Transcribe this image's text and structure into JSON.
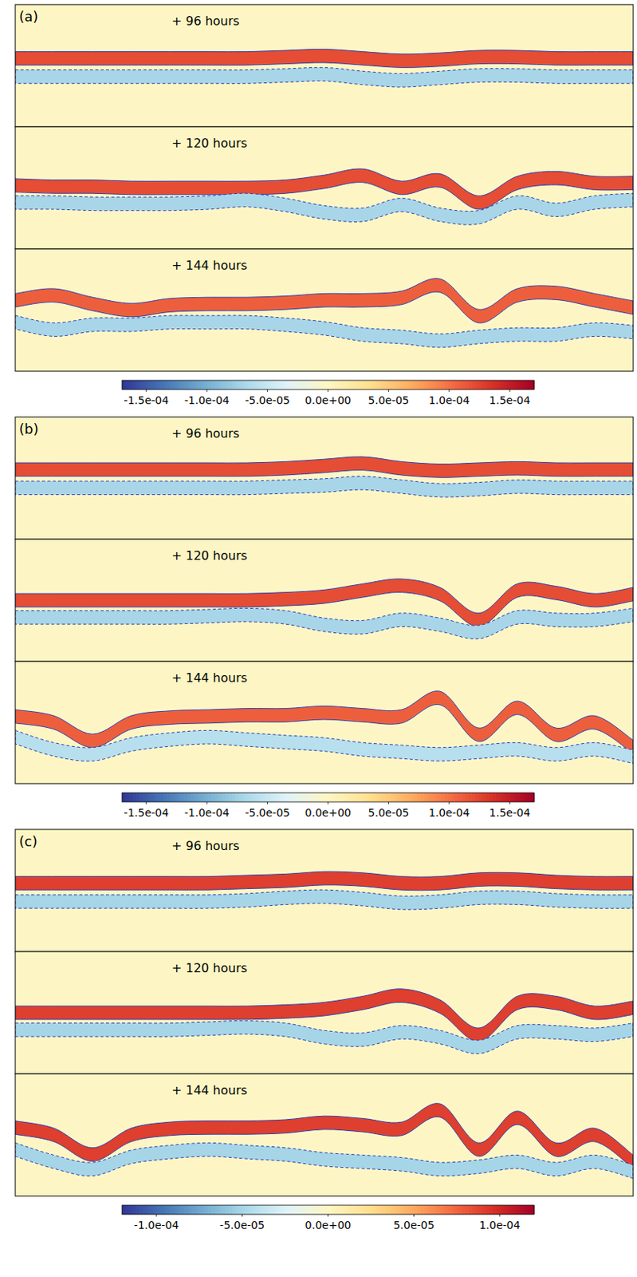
{
  "chart_data": [
    {
      "type": "heatmap",
      "panel": "(a)",
      "x": [
        0,
        0.0625,
        0.125,
        0.1875,
        0.25,
        0.3125,
        0.375,
        0.4375,
        0.5,
        0.5625,
        0.625,
        0.6875,
        0.75,
        0.8125,
        0.875,
        0.9375,
        1
      ],
      "colorbar_range": [
        -0.00017,
        0.00017
      ],
      "colorbar_ticks": [
        {
          "value": -0.00015,
          "label": "-1.5e-04"
        },
        {
          "value": -0.0001,
          "label": "-1.0e-04"
        },
        {
          "value": -5e-05,
          "label": "-5.0e-05"
        },
        {
          "value": 0,
          "label": "0.0e+00"
        },
        {
          "value": 5e-05,
          "label": "5.0e-05"
        },
        {
          "value": 0.0001,
          "label": "1.0e-04"
        },
        {
          "value": 0.00015,
          "label": "1.5e-04"
        }
      ],
      "snapshots": [
        {
          "label": "+ 96 hours",
          "upper_value": 0.00012,
          "lower_value": -7e-05,
          "upper": [
            0.44,
            0.44,
            0.44,
            0.44,
            0.44,
            0.44,
            0.44,
            0.43,
            0.42,
            0.44,
            0.46,
            0.45,
            0.43,
            0.43,
            0.44,
            0.44,
            0.44
          ],
          "lower": [
            0.59,
            0.59,
            0.59,
            0.59,
            0.59,
            0.59,
            0.59,
            0.58,
            0.57,
            0.6,
            0.62,
            0.6,
            0.58,
            0.58,
            0.59,
            0.59,
            0.59
          ]
        },
        {
          "label": "+ 120 hours",
          "upper_value": 0.00012,
          "lower_value": -7e-05,
          "upper": [
            0.48,
            0.49,
            0.49,
            0.5,
            0.5,
            0.5,
            0.5,
            0.49,
            0.45,
            0.4,
            0.5,
            0.44,
            0.62,
            0.46,
            0.42,
            0.46,
            0.46
          ],
          "lower": [
            0.62,
            0.62,
            0.63,
            0.63,
            0.63,
            0.62,
            0.6,
            0.64,
            0.7,
            0.72,
            0.64,
            0.72,
            0.74,
            0.62,
            0.68,
            0.62,
            0.6
          ]
        },
        {
          "label": "+ 144 hours",
          "upper_value": 0.00011,
          "lower_value": -7e-05,
          "upper": [
            0.42,
            0.38,
            0.45,
            0.5,
            0.46,
            0.45,
            0.45,
            0.44,
            0.42,
            0.42,
            0.4,
            0.3,
            0.55,
            0.38,
            0.36,
            0.42,
            0.48
          ],
          "lower": [
            0.6,
            0.66,
            0.62,
            0.62,
            0.6,
            0.6,
            0.6,
            0.62,
            0.65,
            0.7,
            0.72,
            0.75,
            0.72,
            0.7,
            0.7,
            0.66,
            0.68
          ]
        }
      ]
    },
    {
      "type": "heatmap",
      "panel": "(b)",
      "x": [
        0,
        0.0625,
        0.125,
        0.1875,
        0.25,
        0.3125,
        0.375,
        0.4375,
        0.5,
        0.5625,
        0.625,
        0.6875,
        0.75,
        0.8125,
        0.875,
        0.9375,
        1
      ],
      "colorbar_range": [
        -0.00017,
        0.00017
      ],
      "colorbar_ticks": [
        {
          "value": -0.00015,
          "label": "-1.5e-04"
        },
        {
          "value": -0.0001,
          "label": "-1.0e-04"
        },
        {
          "value": -5e-05,
          "label": "-5.0e-05"
        },
        {
          "value": 0,
          "label": "0.0e+00"
        },
        {
          "value": 5e-05,
          "label": "5.0e-05"
        },
        {
          "value": 0.0001,
          "label": "1.0e-04"
        },
        {
          "value": 0.00015,
          "label": "1.5e-04"
        }
      ],
      "snapshots": [
        {
          "label": "+ 96 hours",
          "upper_value": 0.00012,
          "lower_value": -7e-05,
          "upper": [
            0.43,
            0.43,
            0.43,
            0.43,
            0.43,
            0.43,
            0.43,
            0.42,
            0.4,
            0.38,
            0.42,
            0.44,
            0.43,
            0.42,
            0.43,
            0.43,
            0.43
          ],
          "lower": [
            0.58,
            0.58,
            0.58,
            0.58,
            0.58,
            0.58,
            0.58,
            0.57,
            0.56,
            0.54,
            0.57,
            0.6,
            0.59,
            0.57,
            0.58,
            0.58,
            0.58
          ]
        },
        {
          "label": "+ 120 hours",
          "upper_value": 0.00012,
          "lower_value": -7e-05,
          "upper": [
            0.5,
            0.5,
            0.5,
            0.5,
            0.5,
            0.5,
            0.5,
            0.49,
            0.47,
            0.42,
            0.38,
            0.45,
            0.66,
            0.42,
            0.44,
            0.5,
            0.45
          ],
          "lower": [
            0.64,
            0.64,
            0.64,
            0.64,
            0.64,
            0.63,
            0.62,
            0.64,
            0.7,
            0.72,
            0.66,
            0.7,
            0.76,
            0.64,
            0.66,
            0.66,
            0.62
          ]
        },
        {
          "label": "+ 144 hours",
          "upper_value": 0.00011,
          "lower_value": -6e-05,
          "upper": [
            0.45,
            0.5,
            0.65,
            0.5,
            0.46,
            0.45,
            0.44,
            0.44,
            0.42,
            0.44,
            0.45,
            0.3,
            0.6,
            0.38,
            0.6,
            0.5,
            0.7
          ],
          "lower": [
            0.62,
            0.72,
            0.76,
            0.68,
            0.64,
            0.62,
            0.64,
            0.66,
            0.68,
            0.72,
            0.74,
            0.76,
            0.74,
            0.72,
            0.76,
            0.72,
            0.78
          ]
        }
      ]
    },
    {
      "type": "heatmap",
      "panel": "(c)",
      "x": [
        0,
        0.0625,
        0.125,
        0.1875,
        0.25,
        0.3125,
        0.375,
        0.4375,
        0.5,
        0.5625,
        0.625,
        0.6875,
        0.75,
        0.8125,
        0.875,
        0.9375,
        1
      ],
      "colorbar_range": [
        -0.00012,
        0.00012
      ],
      "colorbar_ticks": [
        {
          "value": -0.0001,
          "label": "-1.0e-04"
        },
        {
          "value": -5e-05,
          "label": "-5.0e-05"
        },
        {
          "value": 0,
          "label": "0.0e+00"
        },
        {
          "value": 5e-05,
          "label": "5.0e-05"
        },
        {
          "value": 0.0001,
          "label": "1.0e-04"
        }
      ],
      "snapshots": [
        {
          "label": "+ 96 hours",
          "upper_value": 9e-05,
          "lower_value": -5e-05,
          "upper": [
            0.44,
            0.44,
            0.44,
            0.44,
            0.44,
            0.44,
            0.43,
            0.42,
            0.4,
            0.41,
            0.44,
            0.44,
            0.41,
            0.41,
            0.43,
            0.44,
            0.44
          ],
          "lower": [
            0.59,
            0.59,
            0.59,
            0.59,
            0.59,
            0.59,
            0.58,
            0.56,
            0.55,
            0.57,
            0.6,
            0.59,
            0.56,
            0.56,
            0.58,
            0.59,
            0.59
          ]
        },
        {
          "label": "+ 120 hours",
          "upper_value": 9e-05,
          "lower_value": -5e-05,
          "upper": [
            0.5,
            0.5,
            0.5,
            0.5,
            0.5,
            0.5,
            0.5,
            0.49,
            0.47,
            0.42,
            0.36,
            0.45,
            0.68,
            0.42,
            0.42,
            0.5,
            0.46
          ],
          "lower": [
            0.64,
            0.64,
            0.64,
            0.64,
            0.64,
            0.63,
            0.62,
            0.64,
            0.7,
            0.72,
            0.66,
            0.7,
            0.78,
            0.66,
            0.66,
            0.68,
            0.64
          ]
        },
        {
          "label": "+ 144 hours",
          "upper_value": 9e-05,
          "lower_value": -5e-05,
          "upper": [
            0.44,
            0.5,
            0.66,
            0.5,
            0.45,
            0.44,
            0.44,
            0.43,
            0.4,
            0.42,
            0.45,
            0.3,
            0.62,
            0.36,
            0.62,
            0.5,
            0.72
          ],
          "lower": [
            0.62,
            0.72,
            0.78,
            0.68,
            0.64,
            0.62,
            0.64,
            0.66,
            0.7,
            0.72,
            0.74,
            0.78,
            0.76,
            0.72,
            0.78,
            0.72,
            0.8
          ]
        }
      ]
    }
  ]
}
